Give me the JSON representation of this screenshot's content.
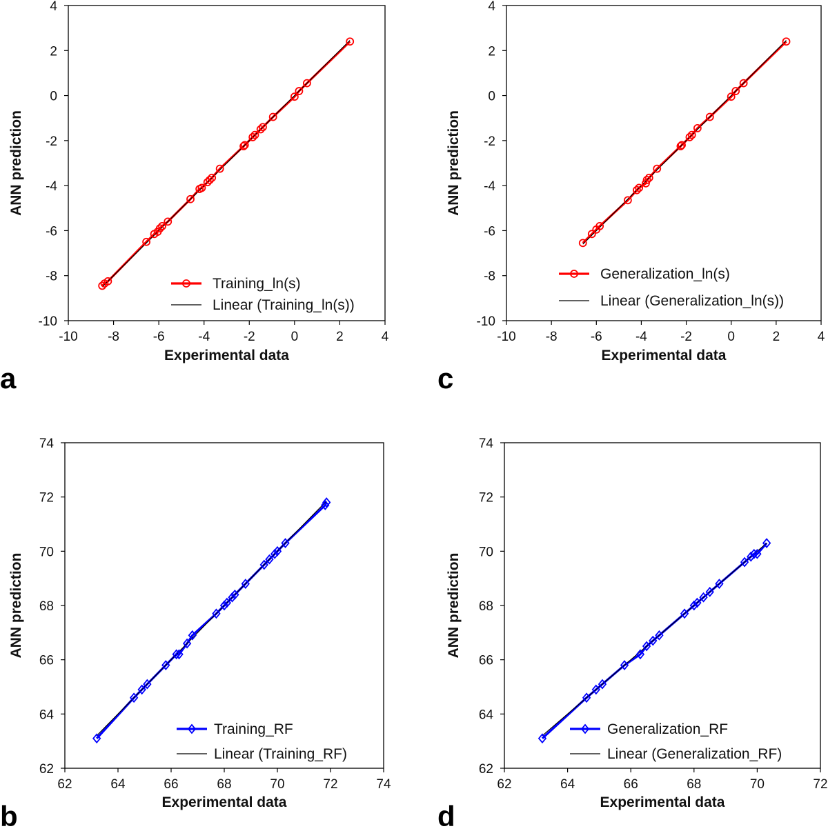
{
  "chart_data": [
    {
      "panel": "a",
      "type": "scatter",
      "xlabel": "Experimental data",
      "ylabel": "ANN prediction",
      "xlim": [
        -10,
        4
      ],
      "ylim": [
        -10,
        4
      ],
      "xticks": [
        "-10",
        "-8",
        "-6",
        "-4",
        "-2",
        "0",
        "2",
        "4"
      ],
      "yticks": [
        "-10",
        "-8",
        "-6",
        "-4",
        "-2",
        "0",
        "2",
        "4"
      ],
      "legend_position": "bottom-right",
      "grid": false,
      "series": [
        {
          "name": "Training_ln(s)",
          "color": "#ff0000",
          "marker": "circle",
          "x": [
            -8.5,
            -8.4,
            -8.25,
            -6.55,
            -6.2,
            -6.05,
            -5.95,
            -5.85,
            -5.6,
            -4.6,
            -4.2,
            -4.1,
            -3.85,
            -3.75,
            -3.65,
            -3.3,
            -2.25,
            -2.2,
            -1.85,
            -1.75,
            -1.5,
            -1.4,
            -0.95,
            0.0,
            0.2,
            0.55,
            2.45
          ],
          "y": [
            -8.45,
            -8.35,
            -8.25,
            -6.5,
            -6.15,
            -6.05,
            -5.9,
            -5.8,
            -5.6,
            -4.6,
            -4.15,
            -4.1,
            -3.85,
            -3.75,
            -3.65,
            -3.25,
            -2.25,
            -2.2,
            -1.85,
            -1.75,
            -1.5,
            -1.4,
            -0.95,
            -0.05,
            0.2,
            0.55,
            2.4
          ]
        },
        {
          "name": "Linear (Training_ln(s))",
          "color": "#000000",
          "trendline": {
            "slope": 1.0,
            "intercept": 0.0
          },
          "x_range": [
            -8.5,
            2.45
          ]
        }
      ]
    },
    {
      "panel": "c",
      "type": "scatter",
      "xlabel": "Experimental data",
      "ylabel": "ANN prediction",
      "xlim": [
        -10,
        4
      ],
      "ylim": [
        -10,
        4
      ],
      "xticks": [
        "-10",
        "-8",
        "-6",
        "-4",
        "-2",
        "0",
        "2",
        "4"
      ],
      "yticks": [
        "-10",
        "-8",
        "-6",
        "-4",
        "-2",
        "0",
        "2",
        "4"
      ],
      "legend_position": "bottom-right",
      "grid": false,
      "series": [
        {
          "name": "Generalization_ln(s)",
          "color": "#ff0000",
          "marker": "circle",
          "x": [
            -6.6,
            -6.2,
            -6.0,
            -5.85,
            -4.6,
            -4.2,
            -4.1,
            -3.8,
            -3.75,
            -3.65,
            -3.3,
            -2.25,
            -2.2,
            -1.85,
            -1.75,
            -1.5,
            -0.95,
            0.0,
            0.2,
            0.55,
            2.45
          ],
          "y": [
            -6.55,
            -6.15,
            -5.95,
            -5.8,
            -4.65,
            -4.2,
            -4.1,
            -3.9,
            -3.75,
            -3.65,
            -3.25,
            -2.25,
            -2.2,
            -1.85,
            -1.75,
            -1.45,
            -0.95,
            -0.05,
            0.2,
            0.55,
            2.4
          ]
        },
        {
          "name": "Linear (Generalization_ln(s))",
          "color": "#000000",
          "trendline": {
            "slope": 1.0,
            "intercept": 0.0
          },
          "x_range": [
            -6.6,
            2.45
          ]
        }
      ]
    },
    {
      "panel": "b",
      "type": "scatter",
      "xlabel": "Experimental data",
      "ylabel": "ANN prediction",
      "xlim": [
        62,
        74
      ],
      "ylim": [
        62,
        74
      ],
      "xticks": [
        "62",
        "64",
        "66",
        "68",
        "70",
        "72",
        "74"
      ],
      "yticks": [
        "62",
        "64",
        "66",
        "68",
        "70",
        "72",
        "74"
      ],
      "legend_position": "bottom-right",
      "grid": false,
      "series": [
        {
          "name": "Training_RF",
          "color": "#0000ff",
          "marker": "diamond",
          "x": [
            63.2,
            64.6,
            64.9,
            65.1,
            65.8,
            66.2,
            66.3,
            66.6,
            66.8,
            67.7,
            68.0,
            68.1,
            68.3,
            68.4,
            68.8,
            69.5,
            69.7,
            69.9,
            70.0,
            70.3,
            71.8,
            71.85
          ],
          "y": [
            63.1,
            64.6,
            64.9,
            65.1,
            65.8,
            66.2,
            66.2,
            66.6,
            66.9,
            67.7,
            68.0,
            68.1,
            68.3,
            68.4,
            68.8,
            69.5,
            69.7,
            69.9,
            70.0,
            70.3,
            71.7,
            71.8
          ]
        },
        {
          "name": "Linear (Training_RF)",
          "color": "#000000",
          "trendline": {
            "slope": 1.0,
            "intercept": 0.0
          },
          "x_range": [
            63.2,
            71.85
          ]
        }
      ]
    },
    {
      "panel": "d",
      "type": "scatter",
      "xlabel": "Experimental data",
      "ylabel": "ANN prediction",
      "xlim": [
        62,
        72
      ],
      "ylim": [
        62,
        74
      ],
      "xticks": [
        "62",
        "64",
        "66",
        "68",
        "70",
        "72"
      ],
      "yticks": [
        "62",
        "64",
        "66",
        "68",
        "70",
        "72",
        "74"
      ],
      "legend_position": "bottom-right",
      "grid": false,
      "series": [
        {
          "name": "Generalization_RF",
          "color": "#0000ff",
          "marker": "diamond",
          "x": [
            63.2,
            64.6,
            64.9,
            65.1,
            65.8,
            66.3,
            66.5,
            66.7,
            66.9,
            67.7,
            68.0,
            68.1,
            68.3,
            68.5,
            68.8,
            69.6,
            69.8,
            69.9,
            70.0,
            70.3
          ],
          "y": [
            63.1,
            64.6,
            64.9,
            65.1,
            65.8,
            66.2,
            66.5,
            66.7,
            66.9,
            67.7,
            68.0,
            68.1,
            68.3,
            68.5,
            68.8,
            69.6,
            69.8,
            69.9,
            69.9,
            70.3
          ]
        },
        {
          "name": "Linear (Generalization_RF)",
          "color": "#000000",
          "trendline": {
            "slope": 1.0,
            "intercept": 0.0
          },
          "x_range": [
            63.2,
            70.3
          ]
        }
      ]
    }
  ]
}
